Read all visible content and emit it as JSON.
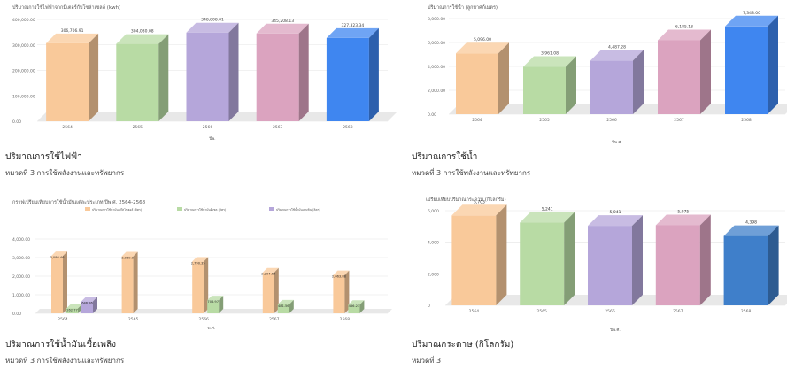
{
  "cards": [
    {
      "caption": "ปริมาณการใช้ไฟฟ้า",
      "category": "หมวดที่ 3 การใช้พลังงานและทรัพยากร",
      "chart_data": {
        "type": "bar",
        "title": "ปริมาณการใช้ไฟฟ้าจากมิเตอร์กับโซล่าเซลล์ (kwh)",
        "xlabel": "ปีพ.",
        "categories": [
          "2564",
          "2565",
          "2566",
          "2567",
          "2568"
        ],
        "values": [
          306706.91,
          304030.08,
          348808.01,
          345208.13,
          327323.34
        ],
        "value_labels": [
          "306,706.91",
          "304,030.08",
          "348,808.01",
          "345,208.13",
          "327,323.34"
        ],
        "ticks": [
          "400,000.00",
          "300,000.00",
          "200,000.00",
          "100,000.00",
          "0.00"
        ],
        "ylim": [
          0,
          400000
        ],
        "colors": [
          "#f9c99a",
          "#b8dba4",
          "#b5a6da",
          "#dba3bf",
          "#3f86f0"
        ]
      }
    },
    {
      "caption": "ปริมาณการใช้น้ำ",
      "category": "หมวดที่ 3 การใช้พลังงานและทรัพยากร",
      "chart_data": {
        "type": "bar",
        "title": "ปริมาณการใช้น้ำ (ลูกบาศก์เมตร)",
        "xlabel": "ปีพ.ศ.",
        "categories": [
          "2564",
          "2565",
          "2566",
          "2567",
          "2568"
        ],
        "values": [
          5096.0,
          3961.08,
          4487.28,
          6185.18,
          7348.0
        ],
        "value_labels": [
          "5,096.00",
          "3,961.08",
          "4,487.28",
          "6,185.18",
          "7,348.00"
        ],
        "ticks": [
          "8,000.00",
          "6,000.00",
          "4,000.00",
          "2,000.00",
          "0.00"
        ],
        "ylim": [
          0,
          8000
        ],
        "colors": [
          "#f9c99a",
          "#b8dba4",
          "#b5a6da",
          "#dba3bf",
          "#3f86f0"
        ]
      }
    },
    {
      "caption": "ปริมาณการใช้น้ำมันเชื้อเพลิง",
      "category": "หมวดที่ 3 การใช้พลังงานและทรัพยากร",
      "chart_data": {
        "type": "bar",
        "title": "กราฟเปรียบเทียบการใช้น้ำมันแต่ละประเภท ปีพ.ศ. 2564-2568",
        "xlabel": "พ.ศ.",
        "categories": [
          "2564",
          "2565",
          "2566",
          "2567",
          "2568"
        ],
        "series": [
          {
            "name": "ปริมาณการใช้น้ำมันแก๊สโซฮอล์ (ลิตร)",
            "values": [
              3086.46,
              3069.0,
              2790.35,
              2204.64,
              2063.88
            ],
            "labels": [
              "3,086.46",
              "3,069.0",
              "2,790.35",
              "2,204.64",
              "2,063.88"
            ],
            "color": "#f9c99a"
          },
          {
            "name": "ปริมาณการใช้น้ำมันดีเซล (ลิตร)",
            "values": [
              262.77,
              null,
              706.97,
              481.56,
              466.23
            ],
            "labels": [
              "262.77",
              "",
              "706.97",
              "481.56",
              "466.23"
            ],
            "color": "#b8dba4"
          },
          {
            "name": "ปริมาณการใช้น้ำมันเบนซิน (ลิตร)",
            "values": [
              646.36,
              null,
              null,
              null,
              null
            ],
            "labels": [
              "646.36",
              "",
              "",
              "",
              ""
            ],
            "color": "#b5a6da"
          }
        ],
        "ticks": [
          "4,000.00",
          "3,000.00",
          "2,000.00",
          "1,000.00",
          "0.00"
        ],
        "ylim": [
          0,
          4000
        ]
      }
    },
    {
      "caption": "ปริมาณกระดาษ (กิโลกรัม)",
      "category": "หมวดที่ 3",
      "chart_data": {
        "type": "bar",
        "title": "เปรียบเทียบปริมาณกระดาษ (กิโลกรัม)",
        "xlabel": "ปีพ.ศ.",
        "categories": [
          "2564",
          "2565",
          "2566",
          "2567",
          "2568"
        ],
        "values": [
          5703,
          5241,
          5041,
          5075,
          4398
        ],
        "value_labels": [
          "5,703",
          "5,241",
          "5,041",
          "5,075",
          "4,398"
        ],
        "ticks": [
          "6,000",
          "4,000",
          "2,000",
          "0"
        ],
        "ylim": [
          0,
          6000
        ],
        "colors": [
          "#f9c99a",
          "#b8dba4",
          "#b5a6da",
          "#dba3bf",
          "#3f7fca"
        ]
      }
    }
  ]
}
